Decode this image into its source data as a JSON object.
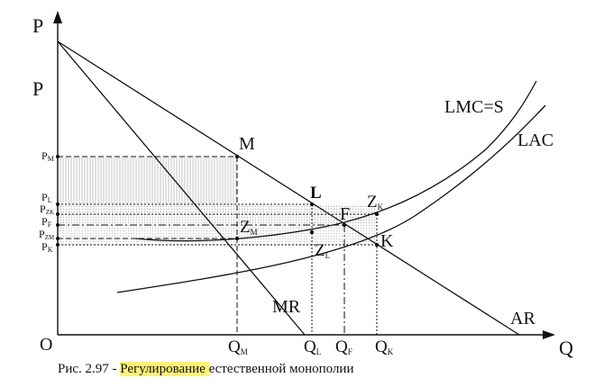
{
  "axes": {
    "y_label": "P",
    "x_label": "Q",
    "origin": "O",
    "p_upper": "P"
  },
  "curves": {
    "lmc": "LMC=S",
    "lac": "LAC",
    "ar": "AR",
    "mr": "MR"
  },
  "points": {
    "m": "M",
    "l": "L",
    "f": "F",
    "k": "K",
    "z": "Z",
    "zm_sub": "M",
    "zl_sub": "L",
    "zk_sub": "K"
  },
  "price_ticks": {
    "pm": {
      "main": "P",
      "sub": "M"
    },
    "pl": {
      "main": "P",
      "sub": "L"
    },
    "pzk": {
      "main": "P",
      "sub": "ZK"
    },
    "pf": {
      "main": "P",
      "sub": "F"
    },
    "pzm": {
      "main": "P",
      "sub": "ZM"
    },
    "pk": {
      "main": "P",
      "sub": "K"
    }
  },
  "quantity_ticks": {
    "qm": {
      "main": "Q",
      "sub": "M"
    },
    "ql": {
      "main": "Q",
      "sub": "L"
    },
    "qf": {
      "main": "Q",
      "sub": "F"
    },
    "qk": {
      "main": "Q",
      "sub": "K"
    }
  },
  "caption": {
    "prefix": "Рис. 2.97 - ",
    "highlight": "Регулирование ",
    "rest": "естественной монополии"
  },
  "colors": {
    "line": "#111111",
    "hatch": "#bdbdbd",
    "highlight": "#fff176"
  }
}
